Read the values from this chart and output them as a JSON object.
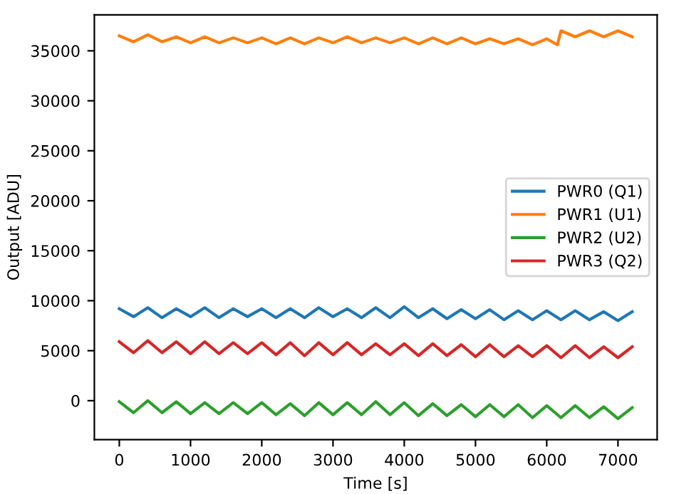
{
  "chart_data": {
    "type": "line",
    "xlabel": "Time [s]",
    "ylabel": "Output [ADU]",
    "x": [
      0,
      200,
      400,
      600,
      800,
      1000,
      1200,
      1400,
      1600,
      1800,
      2000,
      2200,
      2400,
      2600,
      2800,
      3000,
      3200,
      3400,
      3600,
      3800,
      4000,
      4200,
      4400,
      4600,
      4800,
      5000,
      5200,
      5400,
      5600,
      5800,
      6000,
      6200,
      6400,
      6600,
      6800,
      7000,
      7200
    ],
    "series": [
      {
        "name": "PWR0 (Q1)",
        "color": "#1f77b4",
        "values": [
          9200,
          8400,
          9300,
          8300,
          9200,
          8400,
          9300,
          8300,
          9200,
          8400,
          9200,
          8300,
          9200,
          8300,
          9300,
          8400,
          9200,
          8300,
          9300,
          8300,
          9400,
          8300,
          9200,
          8200,
          9100,
          8200,
          9100,
          8100,
          9000,
          8100,
          9000,
          8100,
          9000,
          8100,
          8900,
          8000,
          8900
        ]
      },
      {
        "name": "PWR1 (U1)",
        "color": "#ff7f0e",
        "x": [
          0,
          200,
          400,
          600,
          800,
          1000,
          1200,
          1400,
          1600,
          1800,
          2000,
          2200,
          2400,
          2600,
          2800,
          3000,
          3200,
          3400,
          3600,
          3800,
          4000,
          4200,
          4400,
          4600,
          4800,
          5000,
          5200,
          5400,
          5600,
          5800,
          6000,
          6150,
          6200,
          6400,
          6600,
          6800,
          7000,
          7200
        ],
        "values": [
          36500,
          35900,
          36600,
          35900,
          36400,
          35800,
          36400,
          35800,
          36300,
          35800,
          36300,
          35700,
          36300,
          35700,
          36300,
          35800,
          36400,
          35800,
          36300,
          35800,
          36300,
          35700,
          36300,
          35700,
          36300,
          35700,
          36200,
          35700,
          36200,
          35600,
          36200,
          35600,
          37000,
          36400,
          37000,
          36400,
          37000,
          36400
        ]
      },
      {
        "name": "PWR2 (U2)",
        "color": "#2ca02c",
        "values": [
          -100,
          -1200,
          0,
          -1200,
          -100,
          -1300,
          -200,
          -1300,
          -200,
          -1300,
          -200,
          -1400,
          -300,
          -1500,
          -200,
          -1400,
          -200,
          -1400,
          -100,
          -1400,
          -200,
          -1500,
          -300,
          -1500,
          -400,
          -1600,
          -400,
          -1600,
          -400,
          -1700,
          -500,
          -1700,
          -500,
          -1700,
          -600,
          -1800,
          -700
        ]
      },
      {
        "name": "PWR3 (Q2)",
        "color": "#d62728",
        "values": [
          5900,
          4800,
          6000,
          4800,
          5900,
          4700,
          5900,
          4700,
          5800,
          4700,
          5800,
          4600,
          5800,
          4500,
          5800,
          4600,
          5800,
          4600,
          5700,
          4600,
          5700,
          4500,
          5700,
          4500,
          5600,
          4400,
          5600,
          4400,
          5500,
          4400,
          5500,
          4300,
          5500,
          4300,
          5400,
          4300,
          5400
        ]
      }
    ],
    "xlim": [
      -350,
      7550
    ],
    "xticks": [
      0,
      1000,
      2000,
      3000,
      4000,
      5000,
      6000,
      7000
    ],
    "ylim": [
      -3900,
      38600
    ],
    "yticks": [
      0,
      5000,
      10000,
      15000,
      20000,
      25000,
      30000,
      35000
    ],
    "legend": "center right",
    "grid": false,
    "line_style": "solid"
  }
}
